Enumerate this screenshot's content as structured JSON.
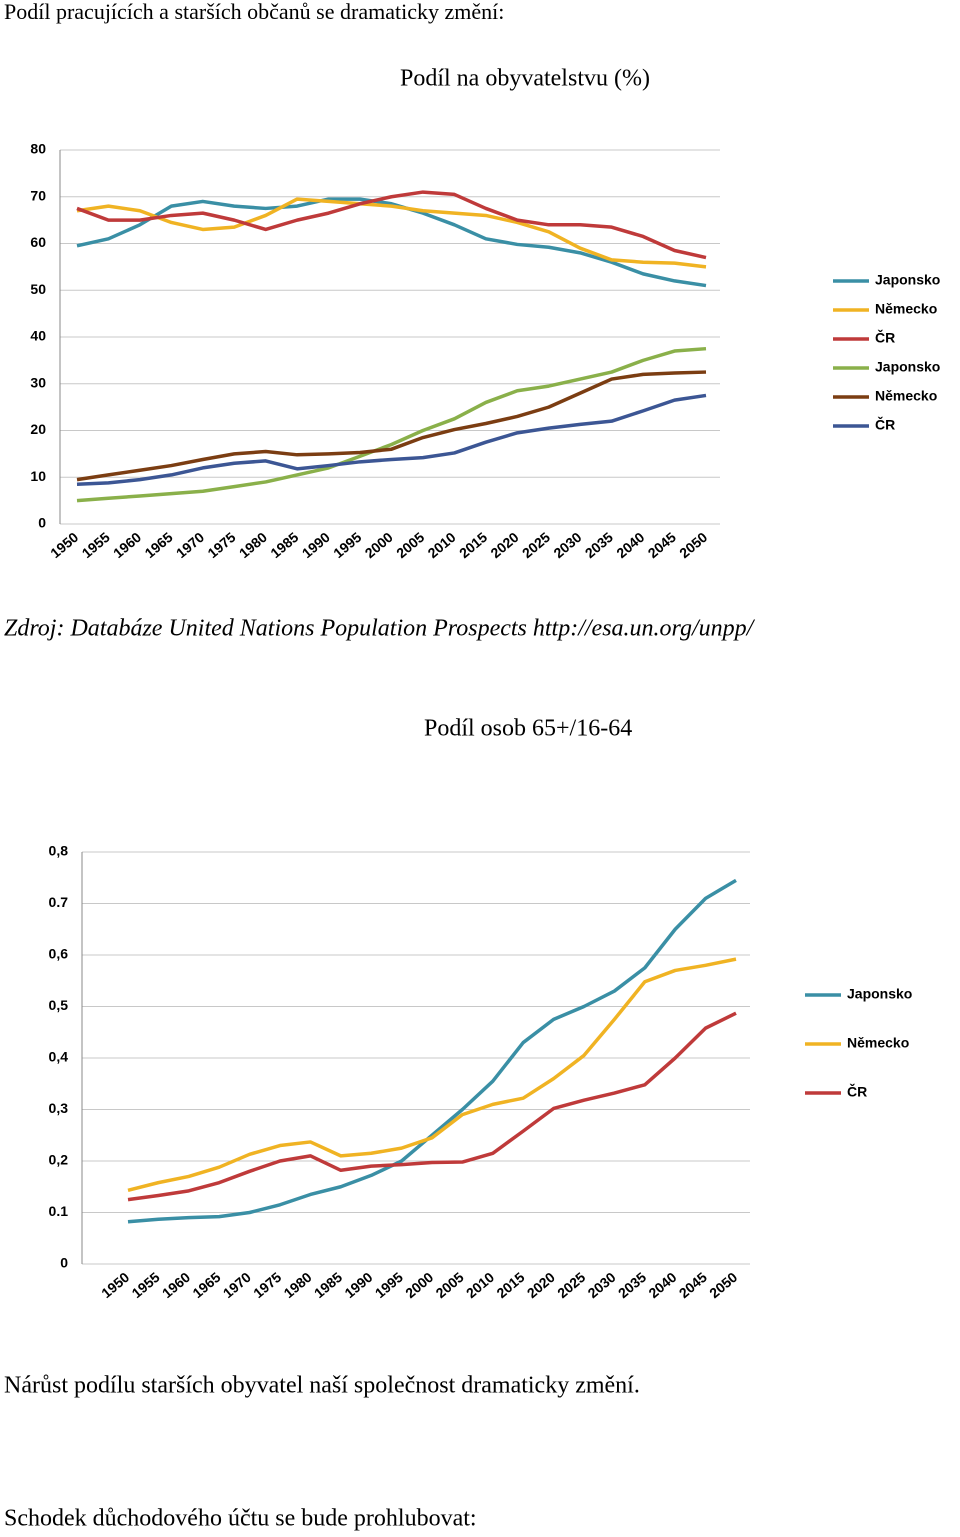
{
  "heading": "Podíl pracujících a starších občanů se dramaticky změní:",
  "source": "Zdroj:  Databáze United Nations Population Prospects http://esa.un.org/unpp/",
  "paragraphs": [
    "Nárůst podílu starších obyvatel naší společnost dramaticky změní.",
    "Schodek důchodového účtu se bude prohlubovat:"
  ],
  "chart_data": [
    {
      "type": "line",
      "title": "Podíl na obyvatelstvu (%)",
      "categories": [
        "1950",
        "1955",
        "1960",
        "1965",
        "1970",
        "1975",
        "1980",
        "1985",
        "1990",
        "1995",
        "2000",
        "2005",
        "2010",
        "2015",
        "2020",
        "2025",
        "2030",
        "2035",
        "2040",
        "2045",
        "2050"
      ],
      "ylim": [
        0,
        80
      ],
      "yticks": [
        0,
        10,
        20,
        30,
        40,
        50,
        60,
        70,
        80
      ],
      "grid": true,
      "legend": "right",
      "series": [
        {
          "name": "Japonsko",
          "color": "#3a8fa5",
          "values": [
            59.5,
            61,
            64,
            68,
            69,
            68,
            67.5,
            68,
            69.5,
            69.5,
            68.5,
            66.5,
            64,
            61,
            59.8,
            59.2,
            58,
            56,
            53.5,
            52,
            51
          ]
        },
        {
          "name": "Německo",
          "color": "#f0b323",
          "values": [
            67,
            68,
            67,
            64.5,
            63,
            63.5,
            66,
            69.5,
            69,
            68.5,
            68,
            67,
            66.5,
            66,
            64.5,
            62.5,
            59,
            56.5,
            56,
            55.8,
            55
          ]
        },
        {
          "name": "ČR",
          "color": "#bf3a3a",
          "values": [
            67.5,
            65,
            65,
            66,
            66.5,
            65,
            63,
            65,
            66.5,
            68.5,
            70,
            71,
            70.5,
            67.5,
            65,
            64,
            64,
            63.5,
            61.5,
            58.5,
            57
          ]
        },
        {
          "name": "Japonsko",
          "color": "#8ab04a",
          "values": [
            5,
            5.5,
            6,
            6.5,
            7,
            8,
            9,
            10.5,
            12,
            14.5,
            17,
            20,
            22.5,
            26,
            28.5,
            29.5,
            31,
            32.5,
            35,
            37,
            37.5
          ]
        },
        {
          "name": "Německo",
          "color": "#7b3d12",
          "values": [
            9.5,
            10.5,
            11.5,
            12.5,
            13.8,
            15,
            15.5,
            14.8,
            15,
            15.3,
            16,
            18.5,
            20.2,
            21.5,
            23,
            25,
            28,
            31,
            32,
            32.3,
            32.5
          ]
        },
        {
          "name": "ČR",
          "color": "#3c5694",
          "values": [
            8.5,
            8.8,
            9.5,
            10.5,
            12,
            13,
            13.5,
            11.8,
            12.5,
            13.3,
            13.8,
            14.2,
            15.2,
            17.5,
            19.5,
            20.5,
            21.3,
            22,
            24.2,
            26.5,
            27.5
          ]
        }
      ]
    },
    {
      "type": "line",
      "title": "Podíl osob 65+/16-64",
      "categories": [
        "1950",
        "1955",
        "1960",
        "1965",
        "1970",
        "1975",
        "1980",
        "1985",
        "1990",
        "1995",
        "2000",
        "2005",
        "2010",
        "2015",
        "2020",
        "2025",
        "2030",
        "2035",
        "2040",
        "2045",
        "2050"
      ],
      "ylim": [
        0,
        0.8
      ],
      "yticks": [
        0,
        0.1,
        {
          "value": 0.2,
          "label": "0,2"
        },
        {
          "value": 0.3,
          "label": "0,3"
        },
        {
          "value": 0.4,
          "label": "0,4"
        },
        {
          "value": 0.5,
          "label": "0,5"
        },
        {
          "value": 0.6,
          "label": "0,6"
        },
        0.7,
        {
          "value": 0.8,
          "label": "0,8"
        }
      ],
      "grid": true,
      "legend": "right",
      "series": [
        {
          "name": "Japonsko",
          "color": "#3a8fa5",
          "values": [
            0.082,
            0.087,
            0.09,
            0.092,
            0.1,
            0.115,
            0.135,
            0.15,
            0.172,
            0.2,
            0.25,
            0.3,
            0.355,
            0.43,
            0.475,
            0.5,
            0.53,
            0.575,
            0.65,
            0.71,
            0.745
          ]
        },
        {
          "name": "Německo",
          "color": "#f0b323",
          "values": [
            0.143,
            0.158,
            0.17,
            0.188,
            0.213,
            0.23,
            0.237,
            0.21,
            0.215,
            0.225,
            0.245,
            0.29,
            0.31,
            0.322,
            0.36,
            0.405,
            0.475,
            0.548,
            0.57,
            0.58,
            0.592
          ]
        },
        {
          "name": "ČR",
          "color": "#bf3a3a",
          "values": [
            0.125,
            0.133,
            0.142,
            0.158,
            0.18,
            0.2,
            0.21,
            0.182,
            0.19,
            0.193,
            0.197,
            0.198,
            0.215,
            0.258,
            0.302,
            0.318,
            0.332,
            0.348,
            0.4,
            0.458,
            0.487
          ]
        }
      ]
    }
  ]
}
